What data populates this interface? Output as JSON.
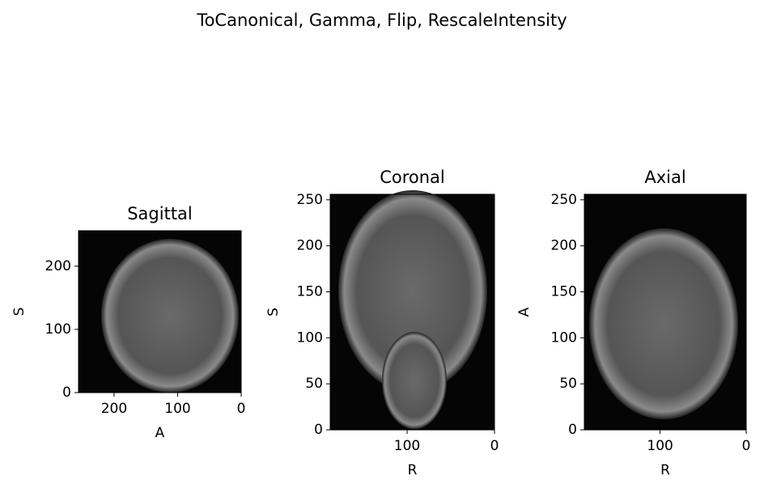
{
  "title": "ToCanonical, Gamma, Flip, RescaleIntensity",
  "chart_data": [
    {
      "type": "image",
      "title": "Sagittal",
      "xlabel": "A",
      "ylabel": "S",
      "xlim": [
        256,
        0
      ],
      "ylim": [
        0,
        256
      ],
      "xticks": [
        200,
        100,
        0
      ],
      "yticks": [
        0,
        100,
        200
      ]
    },
    {
      "type": "image",
      "title": "Coronal",
      "xlabel": "R",
      "ylabel": "S",
      "xlim": [
        188,
        0
      ],
      "ylim": [
        0,
        256
      ],
      "xticks": [
        100,
        0
      ],
      "yticks": [
        0,
        50,
        100,
        150,
        200,
        250
      ]
    },
    {
      "type": "image",
      "title": "Axial",
      "xlabel": "R",
      "ylabel": "A",
      "xlim": [
        188,
        0
      ],
      "ylim": [
        0,
        256
      ],
      "xticks": [
        100,
        0
      ],
      "yticks": [
        0,
        50,
        100,
        150,
        200,
        250
      ]
    }
  ]
}
